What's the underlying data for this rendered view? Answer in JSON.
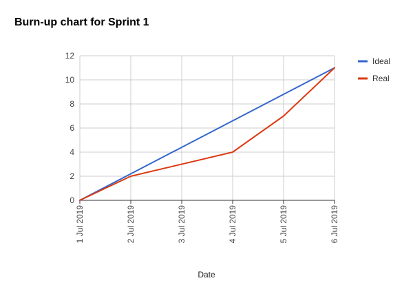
{
  "chart_data": {
    "type": "line",
    "title": "Burn-up chart for Sprint 1",
    "xlabel": "Date",
    "ylabel": "",
    "x": [
      "1 Jul 2019",
      "2 Jul 2019",
      "3 Jul 2019",
      "4 Jul 2019",
      "5 Jul 2019",
      "6 Jul 2019"
    ],
    "ylim": [
      0,
      12
    ],
    "yticks": [
      0,
      2,
      4,
      6,
      8,
      10,
      12
    ],
    "grid": true,
    "legend_position": "right",
    "series": [
      {
        "name": "Ideal",
        "color": "#3366cc",
        "points": [
          {
            "x": "1 Jul 2019",
            "y": 0
          },
          {
            "x": "2 Jul 2019",
            "y": 2.2
          },
          {
            "x": "3 Jul 2019",
            "y": 4.4
          },
          {
            "x": "4 Jul 2019",
            "y": 6.6
          },
          {
            "x": "5 Jul 2019",
            "y": 8.8
          },
          {
            "x": "6 Jul 2019",
            "y": 11
          }
        ]
      },
      {
        "name": "Real",
        "color": "#dc3912",
        "points": [
          {
            "x": "1 Jul 2019",
            "y": 0
          },
          {
            "x": "2 Jul 2019",
            "y": 2
          },
          {
            "x": "4 Jul 2019",
            "y": 4
          },
          {
            "x": "5 Jul 2019",
            "y": 7
          },
          {
            "x": "6 Jul 2019",
            "y": 11
          }
        ]
      }
    ]
  }
}
